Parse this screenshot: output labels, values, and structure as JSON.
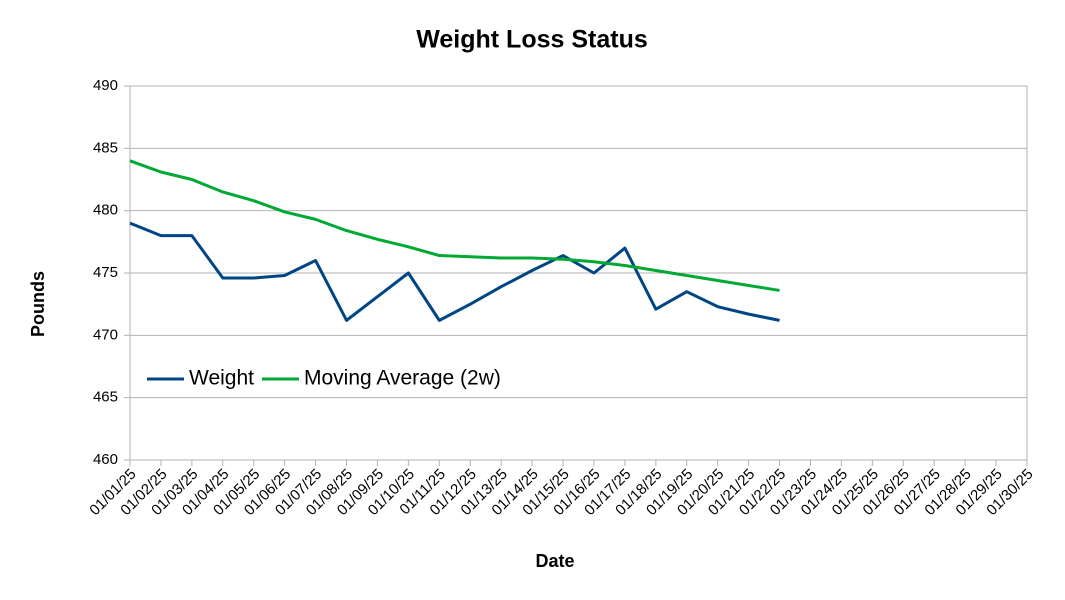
{
  "chart_data": {
    "type": "line",
    "title": "Weight Loss Status",
    "x_label": "Date",
    "y_label": "Pounds",
    "categories": [
      "01/01/25",
      "01/02/25",
      "01/03/25",
      "01/04/25",
      "01/05/25",
      "01/06/25",
      "01/07/25",
      "01/08/25",
      "01/09/25",
      "01/10/25",
      "01/11/25",
      "01/12/25",
      "01/13/25",
      "01/14/25",
      "01/15/25",
      "01/16/25",
      "01/17/25",
      "01/18/25",
      "01/19/25",
      "01/20/25",
      "01/21/25",
      "01/22/25",
      "01/23/25",
      "01/24/25",
      "01/25/25",
      "01/26/25",
      "01/27/25",
      "01/28/25",
      "01/29/25",
      "01/30/25"
    ],
    "series": [
      {
        "name": "Weight",
        "color": "#004586",
        "values": [
          479,
          478,
          478,
          474.6,
          474.6,
          474.8,
          476,
          471.2,
          473.1,
          475,
          471.2,
          472.5,
          473.9,
          475.2,
          476.4,
          475,
          477,
          472.1,
          473.5,
          472.3,
          471.7,
          471.2,
          null,
          null,
          null,
          null,
          null,
          null,
          null,
          null
        ]
      },
      {
        "name": "Moving Average (2w)",
        "color": "#00a933",
        "values": [
          484,
          483.1,
          482.5,
          481.5,
          480.8,
          479.9,
          479.3,
          478.4,
          477.7,
          477.1,
          476.4,
          476.3,
          476.2,
          476.2,
          476.1,
          475.9,
          475.6,
          475.2,
          474.8,
          474.4,
          474,
          473.6,
          null,
          null,
          null,
          null,
          null,
          null,
          null,
          null
        ]
      }
    ],
    "ylim": [
      460,
      490
    ],
    "yticks": [
      460,
      465,
      470,
      475,
      480,
      485,
      490
    ],
    "grid": true,
    "legend": "left"
  }
}
